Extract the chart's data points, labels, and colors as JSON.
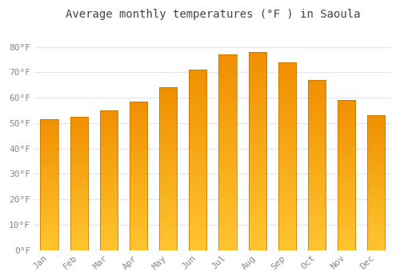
{
  "title": "Average monthly temperatures (°F ) in Saoula",
  "months": [
    "Jan",
    "Feb",
    "Mar",
    "Apr",
    "May",
    "Jun",
    "Jul",
    "Aug",
    "Sep",
    "Oct",
    "Nov",
    "Dec"
  ],
  "values": [
    51.5,
    52.5,
    55.0,
    58.5,
    64.0,
    71.0,
    77.0,
    78.0,
    74.0,
    67.0,
    59.0,
    53.0
  ],
  "bar_color": "#FFA500",
  "bar_color_light": "#FFD060",
  "bar_color_dark": "#F08000",
  "ylim": [
    0,
    88
  ],
  "yticks": [
    0,
    10,
    20,
    30,
    40,
    50,
    60,
    70,
    80
  ],
  "ytick_labels": [
    "0°F",
    "10°F",
    "20°F",
    "30°F",
    "40°F",
    "50°F",
    "60°F",
    "70°F",
    "80°F"
  ],
  "background_color": "#ffffff",
  "plot_bg_color": "#ffffff",
  "grid_color": "#e8e8e8",
  "title_fontsize": 10,
  "tick_fontsize": 8,
  "tick_color": "#888888"
}
